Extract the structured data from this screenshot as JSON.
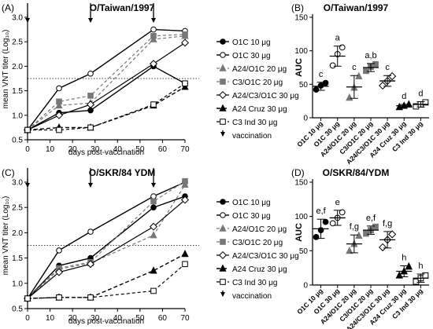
{
  "panels": [
    {
      "letter": "(A)",
      "chart_data": {
        "type": "line",
        "title": "O/Taiwan/1997",
        "xlabel": "days post-vaccination",
        "ylabel": "mean VNT titer (Log₁₀)",
        "xlim": [
          0,
          70
        ],
        "ylim": [
          0.5,
          3.0
        ],
        "xticks": [
          0,
          10,
          20,
          30,
          40,
          50,
          60,
          70
        ],
        "yticks": [
          0.5,
          1.0,
          1.5,
          2.0,
          2.5,
          3.0
        ],
        "x": [
          0,
          14,
          28,
          56,
          70
        ],
        "threshold": 1.75,
        "vaccination_days": [
          0,
          28,
          56
        ],
        "legend_position": "right",
        "series": [
          {
            "name": "O1C 10 μg",
            "values": [
              0.7,
              1.05,
              1.1,
              2.0,
              1.65
            ]
          },
          {
            "name": "O1C 30 μg",
            "values": [
              0.7,
              1.55,
              1.85,
              2.75,
              2.72
            ]
          },
          {
            "name": "A24/O1C 20 μg",
            "values": [
              0.7,
              1.2,
              1.25,
              2.55,
              2.62
            ]
          },
          {
            "name": "C3/O1C 20 μg",
            "values": [
              0.7,
              1.28,
              1.4,
              2.62,
              2.65
            ]
          },
          {
            "name": "A24/C3/O1C 30 μg",
            "values": [
              0.7,
              1.0,
              1.22,
              2.05,
              2.48
            ]
          },
          {
            "name": "A24 Cruz 30 μg",
            "values": [
              0.7,
              0.75,
              0.75,
              1.2,
              1.58
            ]
          },
          {
            "name": "C3 Ind 30 μg",
            "values": [
              0.7,
              0.7,
              0.75,
              1.22,
              1.65
            ]
          }
        ],
        "vaccination_label": "vaccination"
      }
    },
    {
      "letter": "(B)",
      "chart_data": {
        "type": "scatter",
        "title": "O/Taiwan/1997",
        "ylabel": "AUC",
        "ylim": [
          0,
          150
        ],
        "yticks": [
          0,
          50,
          100,
          150
        ],
        "categories": [
          "O1C 10 μg",
          "O1C 30 μg",
          "A24/O1C 20 μg",
          "C3/O1C 20 μg",
          "A24/C3/O1C 30 μg",
          "A24 Cruz 30 μg",
          "C3 Ind 30 μg"
        ],
        "letters": [
          "c",
          "a",
          "c",
          "a,b",
          "c",
          "d",
          "d"
        ],
        "means": [
          47,
          92,
          46,
          75,
          55,
          18,
          20
        ],
        "sd": [
          6,
          15,
          17,
          6,
          8,
          2,
          4
        ],
        "points": [
          [
            42,
            48,
            52
          ],
          [
            78,
            95,
            105
          ],
          [
            30,
            45,
            62
          ],
          [
            70,
            76,
            80
          ],
          [
            48,
            55,
            62
          ],
          [
            16,
            18,
            20
          ],
          [
            17,
            20,
            23
          ]
        ]
      }
    },
    {
      "letter": "(C)",
      "chart_data": {
        "type": "line",
        "title": "O/SKR/84 YDM",
        "xlabel": "days post-vaccination",
        "ylabel": "mean VNT titer (Log₁₀)",
        "xlim": [
          0,
          70
        ],
        "ylim": [
          0.5,
          3.0
        ],
        "xticks": [
          0,
          10,
          20,
          30,
          40,
          50,
          60,
          70
        ],
        "yticks": [
          0.5,
          1.0,
          1.5,
          2.0,
          2.5,
          3.0
        ],
        "x": [
          0,
          14,
          28,
          56,
          70
        ],
        "threshold": 1.75,
        "vaccination_days": [
          0,
          28,
          56
        ],
        "legend_position": "right",
        "series": [
          {
            "name": "O1C 10 μg",
            "values": [
              0.7,
              1.35,
              1.5,
              2.5,
              2.72
            ]
          },
          {
            "name": "O1C 30 μg",
            "values": [
              0.7,
              1.65,
              2.02,
              2.72,
              3.0
            ]
          },
          {
            "name": "A24/O1C 20 μg",
            "values": [
              0.7,
              1.28,
              1.4,
              1.95,
              2.95
            ]
          },
          {
            "name": "C3/O1C 20 μg",
            "values": [
              0.7,
              1.3,
              1.42,
              2.62,
              3.02
            ]
          },
          {
            "name": "A24/C3/O1C 30 μg",
            "values": [
              0.7,
              1.22,
              1.38,
              2.12,
              2.65
            ]
          },
          {
            "name": "A24 Cruz 30 μg",
            "values": [
              0.7,
              0.72,
              0.72,
              1.25,
              1.58
            ]
          },
          {
            "name": "C3 Ind 30 μg",
            "values": [
              0.7,
              0.72,
              0.72,
              0.85,
              1.38
            ]
          }
        ],
        "vaccination_label": "vaccination"
      }
    },
    {
      "letter": "(D)",
      "chart_data": {
        "type": "scatter",
        "title": "O/SKR/84/YDM",
        "ylabel": "AUC",
        "ylim": [
          0,
          150
        ],
        "yticks": [
          0,
          50,
          100,
          150
        ],
        "categories": [
          "O1C 10 μg",
          "O1C 30 μg",
          "A24/O1C 20 μg",
          "C3/O1C 20 μg",
          "A24/C3/O1C 30 μg",
          "A24 Cruz 30 μg",
          "C3 Ind 30 μg"
        ],
        "letters": [
          "e,f",
          "e",
          "f,g",
          "e,f",
          "f,g",
          "h",
          "h"
        ],
        "means": [
          82,
          98,
          60,
          80,
          66,
          20,
          10
        ],
        "sd": [
          14,
          11,
          13,
          6,
          12,
          8,
          6
        ],
        "points": [
          [
            70,
            80,
            92
          ],
          [
            90,
            98,
            106
          ],
          [
            50,
            60,
            72
          ],
          [
            75,
            80,
            85
          ],
          [
            55,
            66,
            74
          ],
          [
            14,
            20,
            27
          ],
          [
            5,
            10,
            14
          ]
        ]
      }
    }
  ]
}
